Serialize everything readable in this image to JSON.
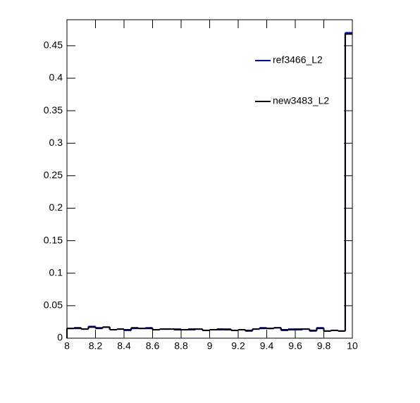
{
  "chart_data": {
    "type": "histogram",
    "bins": [
      8,
      8.05,
      8.1,
      8.15,
      8.2,
      8.25,
      8.3,
      8.35,
      8.4,
      8.45,
      8.5,
      8.55,
      8.6,
      8.65,
      8.7,
      8.75,
      8.8,
      8.85,
      8.9,
      8.95,
      9,
      9.05,
      9.1,
      9.15,
      9.2,
      9.25,
      9.3,
      9.35,
      9.4,
      9.45,
      9.5,
      9.55,
      9.6,
      9.65,
      9.7,
      9.75,
      9.8,
      9.85,
      9.9,
      9.95,
      10
    ],
    "series": [
      {
        "name": "ref3466_L2",
        "color": "#0000cc",
        "values": [
          0.015,
          0.015,
          0.014,
          0.018,
          0.016,
          0.017,
          0.013,
          0.014,
          0.012,
          0.015,
          0.015,
          0.016,
          0.013,
          0.014,
          0.014,
          0.014,
          0.013,
          0.013,
          0.014,
          0.012,
          0.013,
          0.013,
          0.014,
          0.012,
          0.013,
          0.011,
          0.014,
          0.016,
          0.015,
          0.016,
          0.012,
          0.014,
          0.013,
          0.014,
          0.011,
          0.016,
          0.011,
          0.012,
          0.011,
          0.47
        ]
      },
      {
        "name": "new3483_L2",
        "color": "#000000",
        "values": [
          0.015,
          0.016,
          0.014,
          0.017,
          0.015,
          0.017,
          0.013,
          0.014,
          0.013,
          0.016,
          0.015,
          0.015,
          0.013,
          0.014,
          0.014,
          0.013,
          0.013,
          0.014,
          0.014,
          0.012,
          0.013,
          0.014,
          0.013,
          0.012,
          0.013,
          0.012,
          0.014,
          0.015,
          0.015,
          0.016,
          0.013,
          0.013,
          0.014,
          0.014,
          0.012,
          0.015,
          0.011,
          0.012,
          0.011,
          0.468
        ]
      }
    ],
    "xlim": [
      8,
      10
    ],
    "xticks": [
      8,
      8.2,
      8.4,
      8.6,
      8.8,
      9,
      9.2,
      9.4,
      9.6,
      9.8,
      10
    ],
    "ylim": [
      0,
      0.49
    ],
    "yticks": [
      0,
      0.05,
      0.1,
      0.15,
      0.2,
      0.25,
      0.3,
      0.35,
      0.4,
      0.45
    ],
    "legend": "top-right"
  }
}
